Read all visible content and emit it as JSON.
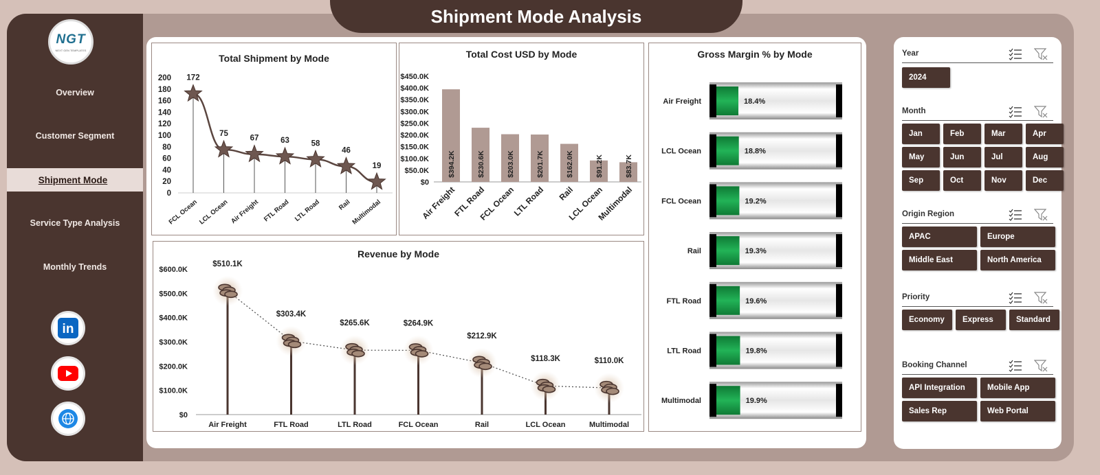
{
  "title": "Shipment Mode Analysis",
  "logo": {
    "text": "NGT",
    "subtext": "NEXT GEN TEMPLATES"
  },
  "nav": [
    {
      "label": "Overview",
      "active": false
    },
    {
      "label": "Customer Segment",
      "active": false
    },
    {
      "label": "Shipment Mode",
      "active": true
    },
    {
      "label": "Service Type Analysis",
      "active": false
    },
    {
      "label": "Monthly Trends",
      "active": false
    }
  ],
  "social": [
    {
      "icon": "linkedin-icon",
      "text": "in",
      "color": "#0a66c2"
    },
    {
      "icon": "youtube-icon",
      "color": "#ff0000"
    },
    {
      "icon": "globe-icon",
      "color": "#1e88e5"
    }
  ],
  "charts": {
    "total_shipment": {
      "title": "Total Shipment by Mode",
      "y_ticks": [
        "200",
        "180",
        "160",
        "140",
        "120",
        "100",
        "80",
        "60",
        "40",
        "20",
        "0"
      ]
    },
    "total_cost": {
      "title": "Total Cost USD by Mode",
      "y_ticks": [
        "$450.0K",
        "$400.0K",
        "$350.0K",
        "$300.0K",
        "$250.0K",
        "$200.0K",
        "$150.0K",
        "$100.0K",
        "$50.0K",
        "$0"
      ]
    },
    "gross_margin": {
      "title": "Gross Margin % by Mode"
    },
    "revenue": {
      "title": "Revenue by Mode",
      "y_ticks": [
        "$600.0K",
        "$500.0K",
        "$400.0K",
        "$300.0K",
        "$200.0K",
        "$100.0K",
        "$0"
      ]
    }
  },
  "chart_data": [
    {
      "type": "line",
      "title": "Total Shipment by Mode",
      "categories": [
        "FCL Ocean",
        "LCL Ocean",
        "Air Freight",
        "FTL Road",
        "LTL Road",
        "Rail",
        "Multimodal"
      ],
      "values": [
        172,
        75,
        67,
        63,
        58,
        46,
        19
      ],
      "labels": [
        "172",
        "75",
        "67",
        "63",
        "58",
        "46",
        "19"
      ],
      "ylim": [
        0,
        200
      ]
    },
    {
      "type": "bar",
      "title": "Total Cost USD by Mode",
      "categories": [
        "Air Freight",
        "FTL Road",
        "FCL Ocean",
        "LTL Road",
        "Rail",
        "LCL Ocean",
        "Multimodal"
      ],
      "values": [
        394.2,
        230.6,
        203.0,
        201.7,
        162.0,
        91.2,
        83.7
      ],
      "labels": [
        "$394.2K",
        "$230.6K",
        "$203.0K",
        "$201.7K",
        "$162.0K",
        "$91.2K",
        "$83.7K"
      ],
      "ylim": [
        0,
        450
      ]
    },
    {
      "type": "bar",
      "title": "Gross Margin % by Mode",
      "categories": [
        "Air Freight",
        "LCL Ocean",
        "FCL Ocean",
        "Rail",
        "FTL Road",
        "LTL Road",
        "Multimodal"
      ],
      "values": [
        18.4,
        18.8,
        19.2,
        19.3,
        19.6,
        19.8,
        19.9
      ],
      "labels": [
        "18.4%",
        "18.8%",
        "19.2%",
        "19.3%",
        "19.6%",
        "19.8%",
        "19.9%"
      ]
    },
    {
      "type": "line",
      "title": "Revenue by Mode",
      "categories": [
        "Air Freight",
        "FTL Road",
        "LTL Road",
        "FCL Ocean",
        "Rail",
        "LCL Ocean",
        "Multimodal"
      ],
      "values": [
        510.1,
        303.4,
        265.6,
        264.9,
        212.9,
        118.3,
        110.0
      ],
      "labels": [
        "$510.1K",
        "$303.4K",
        "$265.6K",
        "$264.9K",
        "$212.9K",
        "$118.3K",
        "$110.0K"
      ],
      "ylim": [
        0,
        600
      ]
    }
  ],
  "slicers": [
    {
      "label": "Year",
      "items": [
        "2024"
      ]
    },
    {
      "label": "Month",
      "items": [
        "Jan",
        "Feb",
        "Mar",
        "Apr",
        "May",
        "Jun",
        "Jul",
        "Aug",
        "Sep",
        "Oct",
        "Nov",
        "Dec"
      ]
    },
    {
      "label": "Origin Region",
      "items": [
        "APAC",
        "Europe",
        "Middle East",
        "North America"
      ]
    },
    {
      "label": "Priority",
      "items": [
        "Economy",
        "Express",
        "Standard"
      ]
    },
    {
      "label": "Booking Channel",
      "items": [
        "API Integration",
        "Mobile App",
        "Sales Rep",
        "Web Portal"
      ]
    }
  ],
  "colors": {
    "brown": "#4a352f",
    "bar": "#b09a93",
    "green": "#1fa84f",
    "line": "#5b4640"
  }
}
